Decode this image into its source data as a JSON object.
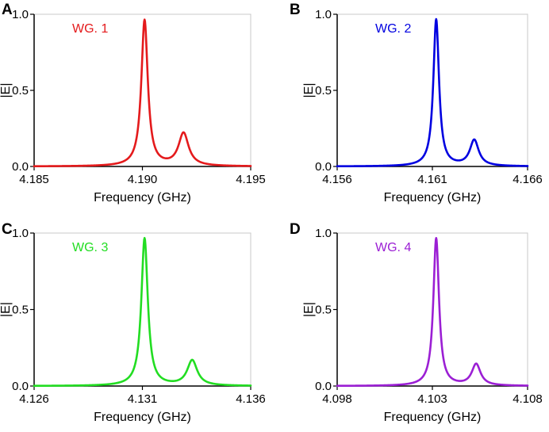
{
  "chart_data": [
    {
      "type": "line",
      "panel": "A",
      "legend": "WG. 1",
      "color": "#e41a1c",
      "xlabel": "Frequency (GHz)",
      "ylabel": "|E|",
      "xlim": [
        4.185,
        4.195
      ],
      "ylim": [
        0.0,
        1.0
      ],
      "xticks": [
        "4.185",
        "4.190",
        "4.195"
      ],
      "yticks": [
        "0.0",
        "0.5",
        "1.0"
      ],
      "peaks": [
        {
          "x": 4.1901,
          "amplitude": 0.96,
          "width": 0.00018
        },
        {
          "x": 4.1919,
          "amplitude": 0.215,
          "width": 0.00028
        }
      ]
    },
    {
      "type": "line",
      "panel": "B",
      "legend": "WG. 2",
      "color": "#0000e0",
      "xlabel": "Frequency (GHz)",
      "ylabel": "|E|",
      "xlim": [
        4.156,
        4.166
      ],
      "ylim": [
        0.0,
        1.0
      ],
      "xticks": [
        "4.156",
        "4.161",
        "4.166"
      ],
      "yticks": [
        "0.0",
        "0.5",
        "1.0"
      ],
      "peaks": [
        {
          "x": 4.1612,
          "amplitude": 0.965,
          "width": 0.00018
        },
        {
          "x": 4.1632,
          "amplitude": 0.17,
          "width": 0.00028
        }
      ]
    },
    {
      "type": "line",
      "panel": "C",
      "legend": "WG. 3",
      "color": "#22dd22",
      "xlabel": "Frequency (GHz)",
      "ylabel": "|E|",
      "xlim": [
        4.126,
        4.136
      ],
      "ylim": [
        0.0,
        1.0
      ],
      "xticks": [
        "4.126",
        "4.131",
        "4.136"
      ],
      "yticks": [
        "0.0",
        "0.5",
        "1.0"
      ],
      "peaks": [
        {
          "x": 4.1311,
          "amplitude": 0.965,
          "width": 0.00018
        },
        {
          "x": 4.1333,
          "amplitude": 0.165,
          "width": 0.00028
        }
      ]
    },
    {
      "type": "line",
      "panel": "D",
      "legend": "WG. 4",
      "color": "#9b1fd4",
      "xlabel": "Frequency (GHz)",
      "ylabel": "|E|",
      "xlim": [
        4.098,
        4.108
      ],
      "ylim": [
        0.0,
        1.0
      ],
      "xticks": [
        "4.098",
        "4.103",
        "4.108"
      ],
      "yticks": [
        "0.0",
        "0.5",
        "1.0"
      ],
      "peaks": [
        {
          "x": 4.1032,
          "amplitude": 0.965,
          "width": 0.00018
        },
        {
          "x": 4.1053,
          "amplitude": 0.14,
          "width": 0.00028
        }
      ]
    }
  ]
}
